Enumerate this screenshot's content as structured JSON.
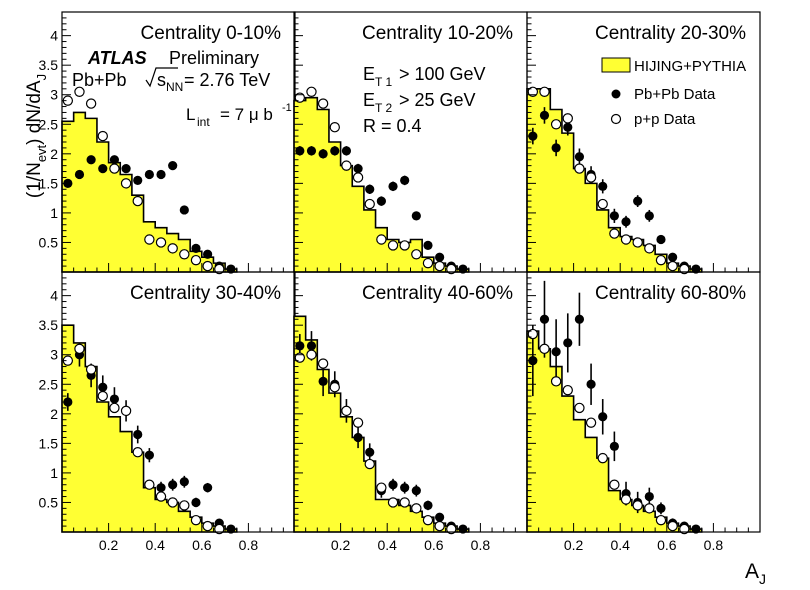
{
  "chart_data": {
    "type": "histogram-with-points",
    "y_axis_label": "(1/N_evt) dN/dA_J",
    "x_axis_label": "A_J",
    "x_ticks": [
      "0.2",
      "0.4",
      "0.6",
      "0.8"
    ],
    "y_ticks": [
      "0.5",
      "1",
      "1.5",
      "2",
      "2.5",
      "3",
      "3.5",
      "4"
    ],
    "xlim": [
      0,
      1
    ],
    "ylim": [
      0,
      4.4
    ],
    "annotations": {
      "experiment": "ATLAS",
      "status": "Preliminary",
      "collision": "Pb+Pb",
      "energy_sym": "s",
      "energy_sub": "NN",
      "energy_value": "= 2.76 TeV",
      "lumi_prefix": "L",
      "lumi_sub": "int",
      "lumi_value": "= 7 μ b",
      "lumi_sup": "-1",
      "cut1_prefix": "E",
      "cut1_sub": "T 1",
      "cut1_value": "> 100 GeV",
      "cut2_prefix": "E",
      "cut2_sub": "T 2",
      "cut2_value": "> 25 GeV",
      "radius": "R = 0.4"
    },
    "legend": [
      "HIJING+PYTHIA",
      "Pb+Pb Data",
      "p+p Data"
    ],
    "colors": {
      "hist_fill": "#ffff33",
      "frame": "#000000"
    },
    "bin_edges": [
      0,
      0.05,
      0.1,
      0.15,
      0.2,
      0.25,
      0.3,
      0.35,
      0.4,
      0.45,
      0.5,
      0.55,
      0.6,
      0.65,
      0.7,
      0.75
    ],
    "pp_x": [
      0.025,
      0.075,
      0.125,
      0.175,
      0.225,
      0.275,
      0.325,
      0.375,
      0.425,
      0.475,
      0.525,
      0.575,
      0.625,
      0.675
    ],
    "pbpb_x": [
      0.025,
      0.075,
      0.125,
      0.175,
      0.225,
      0.275,
      0.325,
      0.375,
      0.425,
      0.475,
      0.525,
      0.575,
      0.625,
      0.675,
      0.725
    ],
    "panels": [
      {
        "title": "Centrality  0-10%",
        "hijing": [
          2.55,
          2.7,
          2.6,
          2.2,
          1.85,
          1.65,
          1.3,
          0.85,
          0.75,
          0.65,
          0.55,
          0.35,
          0.25,
          0.15,
          0.05
        ],
        "pp": [
          2.9,
          3.05,
          2.85,
          2.3,
          1.75,
          1.5,
          1.2,
          0.55,
          0.5,
          0.4,
          0.3,
          0.2,
          0.1,
          0.05
        ],
        "pbpb": [
          1.5,
          1.65,
          1.9,
          1.75,
          1.9,
          1.75,
          1.55,
          1.65,
          1.65,
          1.8,
          1.05,
          0.4,
          0.3,
          0.1,
          0.05
        ],
        "pbpb_err": [
          0.05,
          0.05,
          0.06,
          0.06,
          0.06,
          0.06,
          0.06,
          0.06,
          0.06,
          0.06,
          0.05,
          0.05,
          0.05,
          0.03,
          0.02
        ]
      },
      {
        "title": "Centrality 10-20%",
        "hijing": [
          2.9,
          2.95,
          2.75,
          2.2,
          1.8,
          1.45,
          1.05,
          0.75,
          0.55,
          0.5,
          0.55,
          0.25,
          0.15,
          0.1,
          0.05
        ],
        "pp": [
          2.95,
          3.05,
          2.85,
          2.45,
          1.8,
          1.6,
          1.15,
          0.55,
          0.45,
          0.45,
          0.3,
          0.15,
          0.1,
          0.05
        ],
        "pbpb": [
          2.05,
          2.05,
          2.0,
          2.05,
          2.05,
          1.75,
          1.4,
          1.2,
          1.45,
          1.55,
          0.95,
          0.45,
          0.25,
          0.1,
          0.05
        ],
        "pbpb_err": [
          0.08,
          0.08,
          0.08,
          0.08,
          0.08,
          0.08,
          0.08,
          0.08,
          0.08,
          0.08,
          0.07,
          0.05,
          0.04,
          0.03,
          0.02
        ]
      },
      {
        "title": "Centrality 20-30%",
        "hijing": [
          3.1,
          3.1,
          2.75,
          2.35,
          1.75,
          1.5,
          1.05,
          0.75,
          0.6,
          0.55,
          0.45,
          0.3,
          0.15,
          0.1,
          0.05
        ],
        "pp": [
          3.05,
          3.05,
          2.5,
          2.6,
          1.75,
          1.6,
          1.15,
          0.65,
          0.55,
          0.5,
          0.4,
          0.2,
          0.1,
          0.05
        ],
        "pbpb": [
          2.3,
          2.65,
          2.1,
          2.45,
          1.95,
          1.65,
          1.45,
          0.95,
          0.85,
          1.2,
          0.95,
          0.55,
          0.25,
          0.1,
          0.05
        ],
        "pbpb_err": [
          0.14,
          0.14,
          0.14,
          0.14,
          0.14,
          0.14,
          0.12,
          0.12,
          0.1,
          0.1,
          0.1,
          0.07,
          0.05,
          0.03,
          0.02
        ]
      },
      {
        "title": "Centrality 30-40%",
        "hijing": [
          3.5,
          3.2,
          2.8,
          2.2,
          1.95,
          1.7,
          1.35,
          0.75,
          0.55,
          0.5,
          0.35,
          0.25,
          0.15,
          0.1,
          0.05
        ],
        "pp": [
          2.9,
          3.1,
          2.75,
          2.3,
          2.1,
          2.05,
          1.35,
          0.8,
          0.6,
          0.5,
          0.45,
          0.2,
          0.1,
          0.05
        ],
        "pbpb": [
          2.2,
          3.0,
          2.65,
          2.45,
          2.25,
          2.05,
          1.65,
          1.3,
          0.75,
          0.8,
          0.85,
          0.5,
          0.75,
          0.15,
          0.05
        ],
        "pbpb_err": [
          0.15,
          0.2,
          0.2,
          0.2,
          0.2,
          0.18,
          0.15,
          0.12,
          0.1,
          0.1,
          0.1,
          0.08,
          0.08,
          0.05,
          0.03
        ]
      },
      {
        "title": "Centrality 40-60%",
        "hijing": [
          3.65,
          3.25,
          2.75,
          2.35,
          1.95,
          1.6,
          1.2,
          0.55,
          0.55,
          0.45,
          0.35,
          0.25,
          0.15,
          0.1,
          0.05
        ],
        "pp": [
          2.95,
          3.0,
          2.85,
          2.45,
          2.05,
          1.85,
          1.15,
          0.75,
          0.5,
          0.5,
          0.4,
          0.2,
          0.1,
          0.05
        ],
        "pbpb": [
          3.15,
          3.15,
          2.55,
          2.5,
          2.05,
          1.6,
          1.35,
          0.7,
          0.8,
          0.75,
          0.7,
          0.45,
          0.25,
          0.1,
          0.05
        ],
        "pbpb_err": [
          0.2,
          0.25,
          0.25,
          0.22,
          0.2,
          0.18,
          0.15,
          0.12,
          0.1,
          0.1,
          0.1,
          0.08,
          0.06,
          0.04,
          0.03
        ]
      },
      {
        "title": "Centrality 60-80%",
        "hijing": [
          3.4,
          3.1,
          2.8,
          2.3,
          1.9,
          1.6,
          1.25,
          0.7,
          0.55,
          0.45,
          0.35,
          0.25,
          0.15,
          0.1,
          0.05
        ],
        "pp": [
          3.35,
          3.1,
          2.55,
          2.4,
          2.1,
          1.85,
          1.25,
          0.8,
          0.55,
          0.45,
          0.4,
          0.2,
          0.1,
          0.05
        ],
        "pbpb": [
          2.9,
          3.6,
          3.05,
          3.2,
          3.6,
          2.5,
          1.95,
          1.45,
          0.65,
          0.5,
          0.6,
          0.4,
          0.15,
          0.1,
          0.05
        ],
        "pbpb_err": [
          0.6,
          0.65,
          0.55,
          0.5,
          0.45,
          0.35,
          0.3,
          0.25,
          0.2,
          0.18,
          0.15,
          0.1,
          0.08,
          0.05,
          0.03
        ]
      }
    ]
  }
}
